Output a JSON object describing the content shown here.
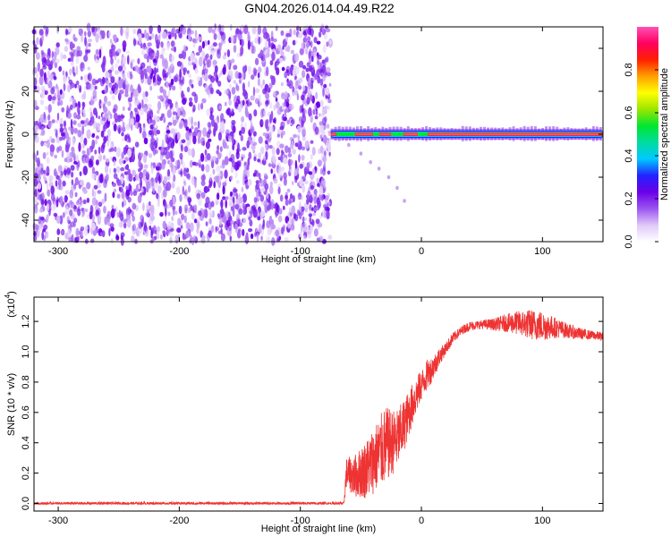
{
  "title": "GN04.2026.014.04.49.R22",
  "chart_data": [
    {
      "type": "heatmap",
      "xlabel": "Height of straight line (km)",
      "ylabel": "Frequency (Hz)",
      "xlim": [
        -320,
        150
      ],
      "ylim": [
        -50,
        50
      ],
      "xticks": [
        -300,
        -200,
        -100,
        0,
        100
      ],
      "yticks": [
        -40,
        -20,
        0,
        20,
        40
      ],
      "noise_region_x": [
        -320,
        -75
      ],
      "signal_trace": {
        "x_start": -75,
        "x_end": 150,
        "frequency_hz": 0,
        "bright_segments": [
          [
            -75,
            -70
          ],
          [
            -55,
            -40
          ],
          [
            -35,
            -25
          ],
          [
            -15,
            -3
          ],
          [
            5,
            150
          ]
        ]
      },
      "faint_drift_points": [
        [
          -60,
          -5
        ],
        [
          -50,
          -9
        ],
        [
          -42,
          -13
        ],
        [
          -35,
          -16
        ],
        [
          -27,
          -20
        ],
        [
          -20,
          -25
        ],
        [
          -14,
          -31
        ]
      ],
      "colorbar": {
        "label": "Normalized spectral amplitude",
        "range": [
          0,
          1
        ],
        "ticks": [
          "0.0",
          "0.2",
          "0.4",
          "0.6",
          "0.8"
        ],
        "colors": [
          "#ffffff",
          "#e0c8f8",
          "#9b55f0",
          "#6a00e8",
          "#2222ff",
          "#00c8ff",
          "#00dca0",
          "#00e632",
          "#9be600",
          "#ffff00",
          "#ffa000",
          "#ff2000",
          "#ff0060",
          "#ff50b4"
        ]
      },
      "grid": false,
      "legend": "none"
    },
    {
      "type": "line",
      "xlabel": "Height of straight line (km)",
      "ylabel": "SNR (10 * v/v)",
      "y_multiplier_label": "(x10",
      "y_multiplier_exp": "4",
      "y_multiplier_close": ")",
      "xlim": [
        -320,
        150
      ],
      "ylim": [
        -0.05,
        1.36
      ],
      "xticks": [
        -300,
        -200,
        -100,
        0,
        100
      ],
      "yticks": [
        "0.0",
        "0.2",
        "0.4",
        "0.6",
        "0.8",
        "1.0",
        "1.2"
      ],
      "line_color": "#ee3333",
      "series_envelope": {
        "x": [
          -320,
          -64,
          -62,
          -55,
          -45,
          -40,
          -35,
          -30,
          -25,
          -20,
          -15,
          -10,
          -5,
          0,
          5,
          10,
          15,
          20,
          25,
          30,
          35,
          40,
          50,
          60,
          70,
          80,
          90,
          100,
          110,
          120,
          130,
          140,
          150
        ],
        "mean": [
          0.0,
          0.0,
          0.2,
          0.18,
          0.23,
          0.28,
          0.33,
          0.38,
          0.4,
          0.42,
          0.5,
          0.6,
          0.7,
          0.78,
          0.85,
          0.9,
          0.97,
          1.02,
          1.08,
          1.12,
          1.15,
          1.17,
          1.18,
          1.18,
          1.19,
          1.19,
          1.18,
          1.17,
          1.16,
          1.14,
          1.12,
          1.11,
          1.1
        ],
        "spread": [
          0.01,
          0.01,
          0.1,
          0.14,
          0.2,
          0.22,
          0.24,
          0.26,
          0.22,
          0.2,
          0.18,
          0.15,
          0.13,
          0.1,
          0.1,
          0.08,
          0.06,
          0.04,
          0.04,
          0.03,
          0.03,
          0.03,
          0.03,
          0.04,
          0.06,
          0.08,
          0.1,
          0.1,
          0.07,
          0.05,
          0.04,
          0.03,
          0.03
        ]
      },
      "grid": false,
      "legend": "none"
    }
  ]
}
